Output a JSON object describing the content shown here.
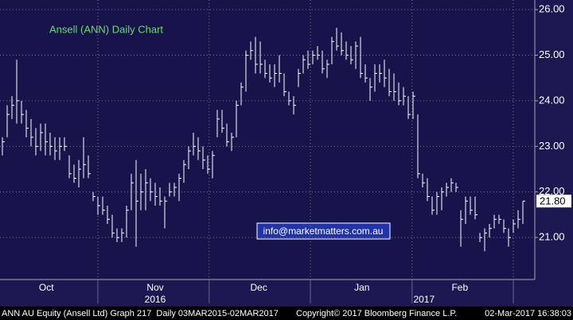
{
  "chart_data": {
    "type": "hlc",
    "title": "Ansell (ANN) Daily Chart",
    "annotation": "info@marketmatters.com.au",
    "color": "#ffffff",
    "high": [
      23.2,
      23.9,
      24.1,
      24.9,
      24.0,
      23.8,
      23.6,
      23.4,
      23.5,
      23.5,
      23.3,
      23.2,
      23.2,
      23.2,
      22.8,
      22.6,
      22.7,
      23.2,
      22.8,
      22.0,
      21.9,
      21.9,
      21.7,
      21.5,
      21.2,
      21.2,
      21.7,
      22.4,
      22.7,
      22.4,
      22.5,
      22.3,
      22.2,
      22.1,
      21.9,
      22.2,
      22.2,
      22.4,
      22.7,
      23.0,
      23.3,
      23.2,
      23.0,
      22.8,
      22.9,
      23.8,
      23.8,
      23.5,
      23.3,
      24.0,
      24.4,
      25.1,
      25.3,
      25.4,
      25.3,
      24.9,
      24.8,
      24.8,
      25.0,
      24.6,
      24.2,
      24.1,
      24.7,
      25.0,
      25.1,
      25.1,
      25.2,
      25.1,
      24.9,
      25.4,
      25.6,
      25.5,
      25.3,
      25.2,
      25.3,
      25.4,
      24.8,
      24.5,
      24.8,
      24.8,
      24.9,
      24.7,
      24.6,
      24.4,
      24.3,
      24.1,
      24.2,
      23.7,
      22.4,
      22.3,
      21.9,
      22.0,
      22.1,
      22.2,
      22.3,
      22.2,
      21.6,
      21.9,
      21.9,
      21.9,
      21.1,
      21.2,
      21.3,
      21.5,
      21.5,
      21.4,
      21.2,
      21.4,
      21.6,
      21.8
    ],
    "low": [
      22.8,
      23.2,
      23.6,
      23.5,
      23.5,
      23.2,
      23.0,
      22.8,
      22.9,
      22.8,
      22.8,
      22.7,
      22.7,
      22.9,
      22.3,
      22.2,
      22.1,
      22.3,
      22.3,
      21.8,
      21.5,
      21.5,
      21.3,
      21.0,
      20.9,
      20.9,
      21.0,
      21.6,
      20.8,
      21.6,
      21.6,
      21.8,
      21.7,
      21.7,
      21.2,
      21.9,
      21.9,
      21.8,
      22.2,
      22.5,
      22.8,
      22.7,
      22.5,
      22.4,
      22.3,
      23.2,
      23.3,
      23.0,
      22.9,
      23.2,
      23.9,
      24.2,
      24.9,
      24.6,
      24.6,
      24.5,
      24.4,
      24.3,
      24.4,
      24.1,
      23.9,
      23.7,
      24.3,
      24.6,
      24.7,
      24.8,
      24.9,
      24.6,
      24.5,
      24.8,
      25.1,
      25.0,
      24.9,
      24.8,
      24.7,
      24.5,
      24.4,
      24.0,
      24.2,
      24.4,
      24.3,
      24.1,
      24.0,
      23.9,
      23.9,
      23.6,
      23.6,
      22.3,
      22.1,
      21.8,
      21.5,
      21.5,
      21.6,
      21.9,
      22.0,
      22.0,
      20.8,
      21.3,
      21.5,
      21.4,
      20.9,
      20.7,
      21.0,
      21.2,
      21.3,
      21.1,
      20.8,
      21.1,
      21.2,
      21.3
    ],
    "close": [
      23.1,
      23.7,
      23.9,
      24.0,
      23.7,
      23.4,
      23.2,
      23.0,
      23.3,
      23.1,
      23.0,
      22.9,
      23.0,
      23.0,
      22.4,
      22.3,
      22.5,
      22.6,
      22.4,
      21.9,
      21.7,
      21.6,
      21.4,
      21.1,
      21.0,
      21.1,
      21.6,
      22.2,
      21.8,
      22.0,
      22.2,
      22.0,
      21.9,
      21.8,
      21.8,
      22.0,
      22.1,
      22.3,
      22.6,
      22.9,
      23.0,
      22.9,
      22.7,
      22.5,
      22.8,
      23.6,
      23.4,
      23.1,
      23.2,
      23.9,
      24.3,
      25.0,
      25.1,
      24.8,
      24.8,
      24.6,
      24.5,
      24.6,
      24.6,
      24.2,
      24.0,
      23.9,
      24.6,
      24.9,
      24.8,
      25.0,
      25.0,
      24.7,
      24.8,
      25.3,
      25.2,
      25.1,
      25.0,
      24.9,
      25.2,
      24.6,
      24.5,
      24.3,
      24.6,
      24.6,
      24.5,
      24.2,
      24.2,
      24.0,
      24.1,
      23.7,
      24.1,
      22.4,
      22.2,
      21.9,
      21.6,
      21.9,
      22.0,
      22.1,
      22.2,
      22.1,
      21.4,
      21.8,
      21.6,
      21.5,
      21.0,
      21.1,
      21.2,
      21.4,
      21.4,
      21.2,
      21.0,
      21.3,
      21.4,
      21.8
    ],
    "last_price": {
      "value": 21.8,
      "label": "21.80"
    },
    "ylim": [
      20.08,
      26.21
    ],
    "yticks": [
      {
        "value": 21,
        "label": "21.00"
      },
      {
        "value": 22,
        "label": "22.00"
      },
      {
        "value": 23,
        "label": "23.00"
      },
      {
        "value": 24,
        "label": "24.00"
      },
      {
        "value": 25,
        "label": "25.00"
      },
      {
        "value": 26,
        "label": "26.00"
      }
    ],
    "xlim": [
      -0.5,
      111.5
    ],
    "xticks": [
      20,
      43.3,
      64.5,
      85.8,
      107
    ],
    "month_labels": [
      {
        "value": 9.2,
        "label": "Oct"
      },
      {
        "value": 32,
        "label": "Nov"
      },
      {
        "value": 53.7,
        "label": "Dec"
      },
      {
        "value": 75.3,
        "label": "Jan"
      },
      {
        "value": 95.8,
        "label": "Feb"
      }
    ],
    "year_labels": [
      {
        "value": 32,
        "label": "2016"
      },
      {
        "value": 88.3,
        "label": "2017"
      }
    ],
    "grid": true,
    "footer": {
      "left": "ANN AU Equity (Ansell Ltd) Graph 217  Daily 03MAR2015-02MAR2017",
      "center": "Copyright© 2017 Bloomberg Finance L.P.",
      "right": "02-Mar-2017 16:38:03"
    }
  }
}
